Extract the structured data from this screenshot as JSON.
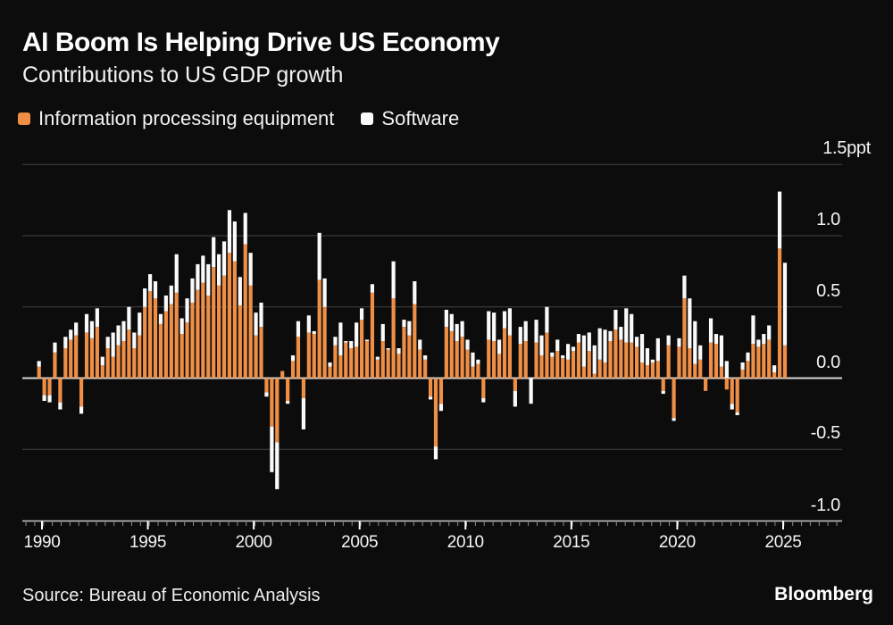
{
  "header": {
    "title": "AI Boom Is Helping Drive US Economy",
    "subtitle": "Contributions to US GDP growth"
  },
  "legend": {
    "items": [
      {
        "label": "Information processing equipment",
        "color": "#ef8f45"
      },
      {
        "label": "Software",
        "color": "#fafafa"
      }
    ]
  },
  "footer": {
    "source": "Source: Bureau of Economic Analysis",
    "brand": "Bloomberg"
  },
  "colors": {
    "background": "#0c0c0d",
    "grid": "#434345",
    "zero_line": "#d6d6d6",
    "axis_line": "#c9c9c9",
    "minor_tick": "#8a8a8a",
    "major_tick": "#ffffff",
    "equipment": "#ef8f45",
    "software": "#fafafa"
  },
  "chart_data": {
    "type": "bar",
    "stacked": true,
    "title": "AI Boom Is Helping Drive US Economy",
    "subtitle": "Contributions to US GDP growth",
    "unit": "ppt",
    "ylim": [
      -1.0,
      1.5
    ],
    "grid": true,
    "legend_position": "top-left",
    "x_period": {
      "start": "1990Q1",
      "end": "2025Q2",
      "freq": "quarterly",
      "count": 142
    },
    "x_axis_ticks": [
      {
        "label": "1990",
        "year": 1990
      },
      {
        "label": "1995",
        "year": 1995
      },
      {
        "label": "2000",
        "year": 2000
      },
      {
        "label": "2005",
        "year": 2005
      },
      {
        "label": "2010",
        "year": 2010
      },
      {
        "label": "2015",
        "year": 2015
      },
      {
        "label": "2020",
        "year": 2020
      },
      {
        "label": "2025",
        "year": 2025
      }
    ],
    "y_axis_ticks": [
      {
        "label": "1.5ppt",
        "value": 1.5
      },
      {
        "label": "1.0",
        "value": 1.0
      },
      {
        "label": "0.5",
        "value": 0.5
      },
      {
        "label": "0.0",
        "value": 0.0
      },
      {
        "label": "-0.5",
        "value": -0.5
      },
      {
        "label": "-1.0",
        "value": -1.0
      }
    ],
    "series": [
      {
        "name": "Information processing equipment",
        "color": "#ef8f45",
        "values": [
          0.08,
          -0.12,
          -0.12,
          0.18,
          -0.17,
          0.21,
          0.27,
          0.3,
          -0.2,
          0.32,
          0.28,
          0.36,
          0.09,
          0.21,
          0.15,
          0.23,
          0.26,
          0.34,
          0.21,
          0.3,
          0.5,
          0.61,
          0.56,
          0.38,
          0.47,
          0.52,
          0.6,
          0.31,
          0.39,
          0.53,
          0.62,
          0.67,
          0.58,
          0.78,
          0.65,
          0.72,
          0.88,
          0.82,
          0.51,
          0.94,
          0.65,
          0.3,
          0.36,
          -0.1,
          -0.34,
          -0.45,
          0.05,
          -0.16,
          0.12,
          0.29,
          -0.14,
          0.32,
          0.31,
          0.69,
          0.5,
          0.08,
          0.23,
          0.16,
          0.25,
          0.21,
          0.22,
          0.41,
          0.26,
          0.6,
          0.13,
          0.26,
          0.2,
          0.56,
          0.17,
          0.36,
          0.3,
          0.52,
          0.2,
          0.13,
          -0.13,
          -0.48,
          -0.18,
          0.36,
          0.33,
          0.26,
          0.29,
          0.2,
          0.08,
          0.1,
          -0.14,
          0.27,
          0.26,
          0.17,
          0.35,
          0.3,
          -0.09,
          0.24,
          0.26,
          0.0,
          0.25,
          0.16,
          0.32,
          0.15,
          0.19,
          0.14,
          0.13,
          0.19,
          0.25,
          0.08,
          0.19,
          0.03,
          0.13,
          0.11,
          0.26,
          0.34,
          0.27,
          0.25,
          0.25,
          0.22,
          0.11,
          0.09,
          0.11,
          0.12,
          -0.09,
          0.23,
          -0.28,
          0.22,
          0.56,
          0.21,
          0.1,
          0.13,
          -0.09,
          0.25,
          0.24,
          0.08,
          -0.08,
          -0.18,
          -0.24,
          0.06,
          0.12,
          0.24,
          0.22,
          0.24,
          0.27,
          0.04,
          0.91,
          0.23
        ]
      },
      {
        "name": "Software",
        "color": "#fafafa",
        "values": [
          0.04,
          -0.04,
          -0.05,
          0.07,
          -0.05,
          0.08,
          0.07,
          0.09,
          -0.05,
          0.13,
          0.12,
          0.13,
          0.06,
          0.08,
          0.17,
          0.14,
          0.14,
          0.16,
          0.11,
          0.16,
          0.13,
          0.12,
          0.12,
          0.07,
          0.11,
          0.13,
          0.27,
          0.11,
          0.17,
          0.17,
          0.18,
          0.19,
          0.22,
          0.21,
          0.22,
          0.24,
          0.3,
          0.28,
          0.2,
          0.22,
          0.23,
          0.16,
          0.17,
          -0.03,
          -0.32,
          -0.33,
          0.0,
          -0.02,
          0.04,
          0.11,
          -0.22,
          0.12,
          0.02,
          0.33,
          0.2,
          0.03,
          0.06,
          0.23,
          0.01,
          0.05,
          0.17,
          0.08,
          0.01,
          0.06,
          0.02,
          0.12,
          0.01,
          0.26,
          0.04,
          0.05,
          0.1,
          0.16,
          0.07,
          0.03,
          -0.02,
          -0.09,
          -0.05,
          0.12,
          0.12,
          0.12,
          0.11,
          0.07,
          0.1,
          0.03,
          -0.03,
          0.2,
          0.2,
          0.1,
          0.12,
          0.19,
          -0.11,
          0.12,
          0.14,
          -0.18,
          0.16,
          0.14,
          0.18,
          0.03,
          0.08,
          0.02,
          0.11,
          0.03,
          0.06,
          0.22,
          0.13,
          0.2,
          0.22,
          0.23,
          0.07,
          0.14,
          0.09,
          0.24,
          0.2,
          0.07,
          0.2,
          0.12,
          0.02,
          0.16,
          -0.02,
          0.07,
          -0.02,
          0.06,
          0.16,
          0.35,
          0.3,
          0.1,
          0.0,
          0.17,
          0.07,
          0.22,
          0.12,
          -0.04,
          -0.02,
          0.05,
          0.06,
          0.2,
          0.05,
          0.07,
          0.1,
          0.05,
          0.4,
          0.58
        ]
      }
    ]
  }
}
